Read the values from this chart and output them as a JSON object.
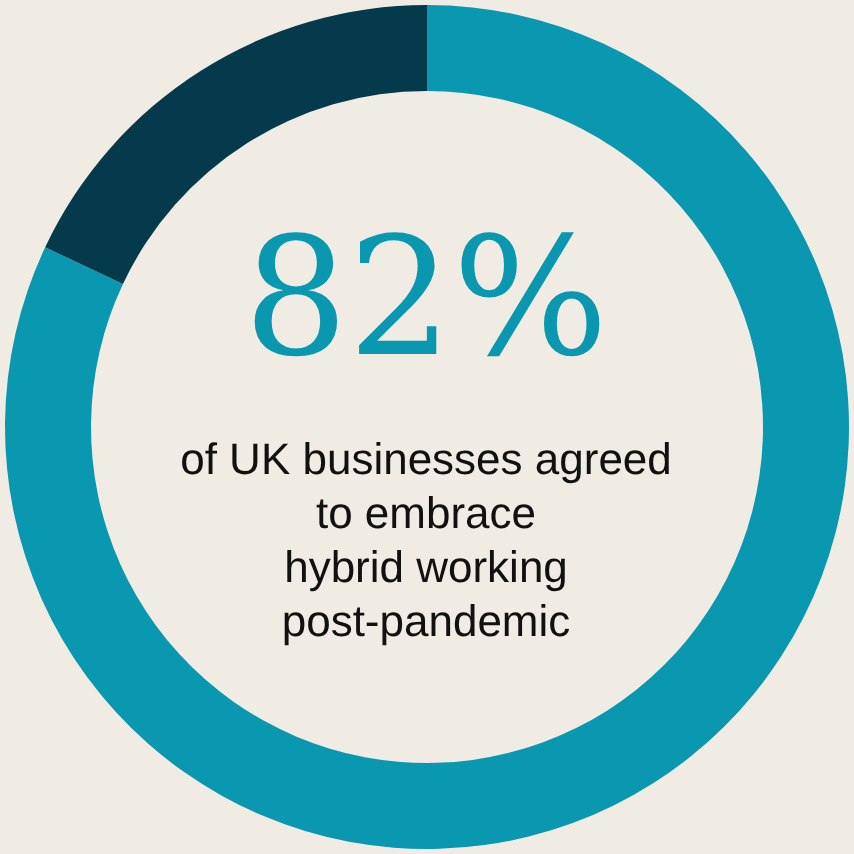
{
  "chart_data": {
    "type": "donut",
    "categories": [
      null,
      null
    ],
    "values": [
      82,
      18
    ],
    "colors": [
      "#0a97b0",
      "#053a4c"
    ],
    "value_labels": [
      "82%",
      null
    ],
    "annotations": [
      "of UK businesses agreed\nto embrace\nhybrid working\npost-pandemic"
    ]
  }
}
